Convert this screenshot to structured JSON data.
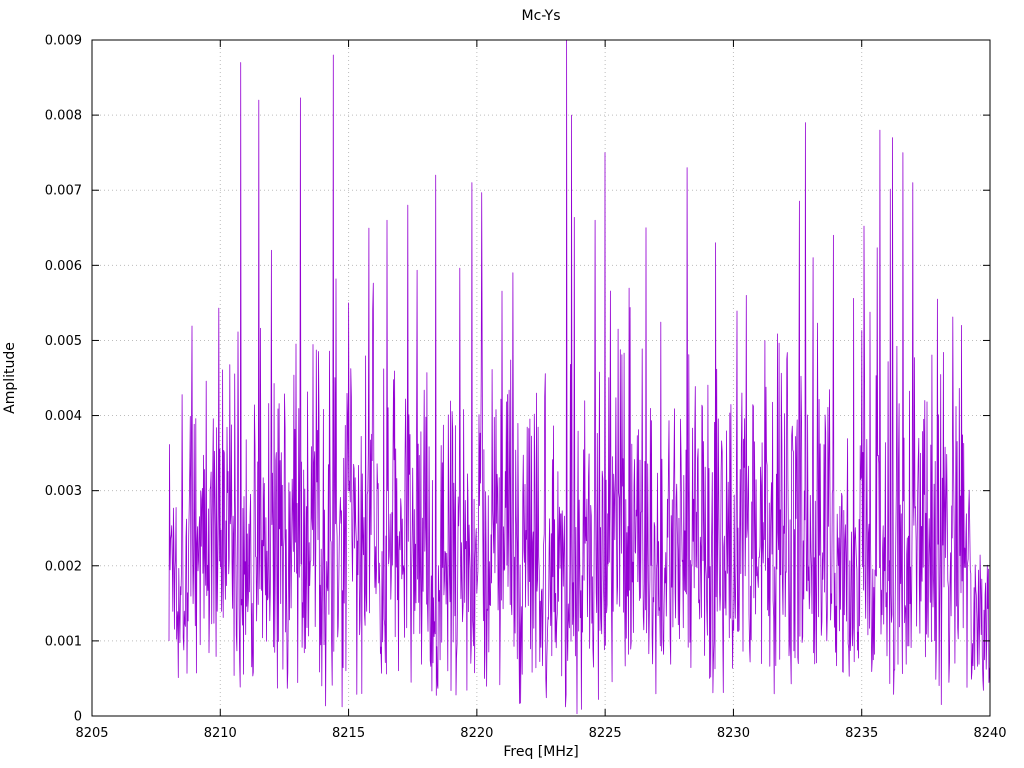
{
  "chart_data": {
    "type": "line",
    "title": "Mc-Ys",
    "xlabel": "Freq [MHz]",
    "ylabel": "Amplitude",
    "xlim": [
      8205,
      8240
    ],
    "ylim": [
      0,
      0.009
    ],
    "grid": true,
    "legend_position": "none",
    "line_color": "#9400d3",
    "grid_color": "#bdbdbd",
    "border_color": "#000000",
    "x_ticks": [
      {
        "v": 8205,
        "label": "8205"
      },
      {
        "v": 8210,
        "label": "8210"
      },
      {
        "v": 8215,
        "label": "8215"
      },
      {
        "v": 8220,
        "label": "8220"
      },
      {
        "v": 8225,
        "label": "8225"
      },
      {
        "v": 8230,
        "label": "8230"
      },
      {
        "v": 8235,
        "label": "8235"
      },
      {
        "v": 8240,
        "label": "8240"
      }
    ],
    "y_ticks": [
      {
        "v": 0,
        "label": "0"
      },
      {
        "v": 0.001,
        "label": "0.001"
      },
      {
        "v": 0.002,
        "label": "0.002"
      },
      {
        "v": 0.003,
        "label": "0.003"
      },
      {
        "v": 0.004,
        "label": "0.004"
      },
      {
        "v": 0.005,
        "label": "0.005"
      },
      {
        "v": 0.006,
        "label": "0.006"
      },
      {
        "v": 0.007,
        "label": "0.007"
      },
      {
        "v": 0.008,
        "label": "0.008"
      }
    ],
    "y_top_tick": {
      "v": 0.009,
      "label": "0.009"
    },
    "data_range": [
      8208.0,
      8240.0
    ],
    "series_description": "Dense noise-like amplitude spectrum, baseline mostly 0.001-0.005 with sharp spikes up to 0.009",
    "synthesis": {
      "seed": 1337,
      "n_points": 1500,
      "sigma": 0.0019,
      "env_min": 0.85,
      "env_span": 0.3,
      "start_value": 0.001,
      "taper_after_x": 8239.3,
      "taper_factor": 0.5
    },
    "peaks": [
      [
        8210.8,
        0.0087
      ],
      [
        8211.5,
        0.0082
      ],
      [
        8212.0,
        0.0062
      ],
      [
        8214.4,
        0.0088
      ],
      [
        8215.0,
        0.0055
      ],
      [
        8216.5,
        0.0066
      ],
      [
        8217.3,
        0.0068
      ],
      [
        8218.4,
        0.0072
      ],
      [
        8219.8,
        0.0071
      ],
      [
        8221.4,
        0.0059
      ],
      [
        8223.5,
        0.009
      ],
      [
        8223.7,
        0.008
      ],
      [
        8224.6,
        0.0066
      ],
      [
        8225.0,
        0.0075
      ],
      [
        8226.6,
        0.0065
      ],
      [
        8228.2,
        0.0073
      ],
      [
        8229.3,
        0.0063
      ],
      [
        8230.5,
        0.0056
      ],
      [
        8232.8,
        0.0079
      ],
      [
        8233.9,
        0.0064
      ],
      [
        8235.7,
        0.0078
      ],
      [
        8236.2,
        0.0077
      ],
      [
        8236.6,
        0.0075
      ],
      [
        8237.0,
        0.0071
      ],
      [
        8238.9,
        0.0052
      ]
    ]
  },
  "layout_text": {
    "title": "Mc-Ys",
    "xlabel": "Freq [MHz]",
    "ylabel": "Amplitude"
  }
}
